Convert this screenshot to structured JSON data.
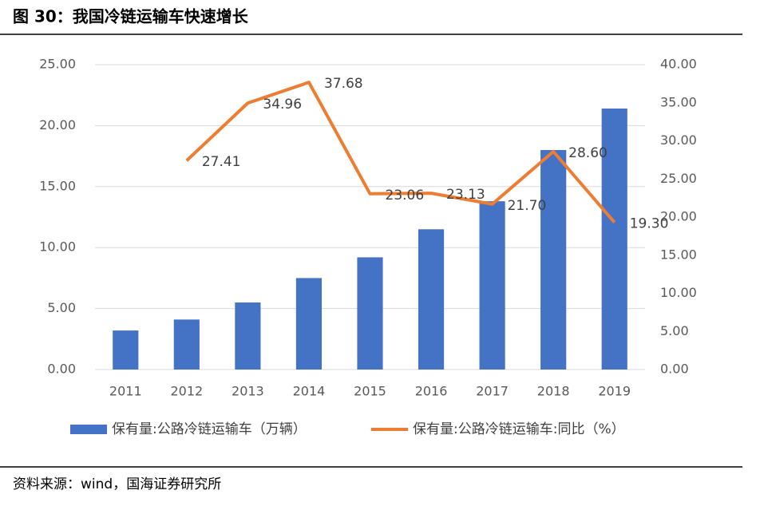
{
  "header": {
    "title": "图 30：我国冷链运输车快速增长"
  },
  "chart_data": {
    "type": "bar-line",
    "categories": [
      "2011",
      "2012",
      "2013",
      "2014",
      "2015",
      "2016",
      "2017",
      "2018",
      "2019"
    ],
    "series": [
      {
        "name": "保有量:公路冷链运输车（万辆）",
        "type": "bar",
        "color": "#4472c4",
        "axis": "y",
        "values": [
          3.2,
          4.1,
          5.5,
          7.5,
          9.2,
          11.5,
          13.8,
          18.0,
          21.4
        ]
      },
      {
        "name": "保有量:公路冷链运输车:同比（%）",
        "type": "line",
        "color": "#ed7d31",
        "axis": "y2",
        "values": [
          null,
          27.41,
          34.96,
          37.68,
          23.06,
          23.13,
          21.7,
          28.6,
          19.3
        ],
        "value_labels": [
          null,
          "27.41",
          "34.96",
          "37.68",
          "23.06",
          "23.13",
          "21.70",
          "28.60",
          "19.30"
        ]
      }
    ],
    "ylim": [
      0,
      25
    ],
    "yticks": [
      {
        "value": 0,
        "label": "0.00"
      },
      {
        "value": 5,
        "label": "5.00"
      },
      {
        "value": 10,
        "label": "10.00"
      },
      {
        "value": 15,
        "label": "15.00"
      },
      {
        "value": 20,
        "label": "20.00"
      },
      {
        "value": 25,
        "label": "25.00"
      }
    ],
    "y2lim": [
      0,
      40
    ],
    "y2ticks": [
      {
        "value": 0,
        "label": "0.00"
      },
      {
        "value": 5,
        "label": "5.00"
      },
      {
        "value": 10,
        "label": "10.00"
      },
      {
        "value": 15,
        "label": "15.00"
      },
      {
        "value": 20,
        "label": "20.00"
      },
      {
        "value": 25,
        "label": "25.00"
      },
      {
        "value": 30,
        "label": "30.00"
      },
      {
        "value": 35,
        "label": "35.00"
      },
      {
        "value": 40,
        "label": "40.00"
      }
    ],
    "grid": true,
    "legend": "bottom"
  },
  "footer": {
    "source": "资料来源：wind，国海证券研究所"
  }
}
